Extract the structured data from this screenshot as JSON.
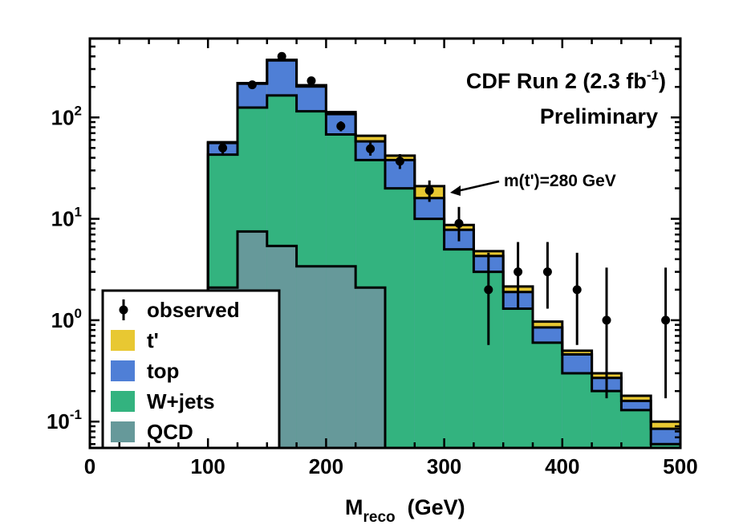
{
  "chart_data": {
    "type": "bar",
    "stacked": true,
    "log_y": true,
    "bin_edges": [
      100,
      125,
      150,
      175,
      200,
      225,
      250,
      275,
      300,
      325,
      350,
      375,
      400,
      425,
      450,
      475,
      500
    ],
    "series": [
      {
        "name": "QCD",
        "color": "#66999a",
        "values": [
          2.1,
          7.5,
          5.4,
          3.4,
          3.4,
          2.1,
          0,
          0,
          0,
          0,
          0,
          0,
          0,
          0,
          0,
          0
        ]
      },
      {
        "name": "W+jets",
        "color": "#33b37f",
        "values": [
          43,
          125,
          165,
          115,
          68,
          38,
          20,
          10,
          5,
          3,
          1.3,
          0.6,
          0.3,
          0.2,
          0.13,
          0.06
        ]
      },
      {
        "name": "top",
        "color": "#4f7fd6",
        "values": [
          56,
          215,
          365,
          202,
          108,
          58,
          38,
          16,
          7.8,
          4.3,
          1.9,
          0.85,
          0.46,
          0.27,
          0.16,
          0.085
        ]
      },
      {
        "name": "t'",
        "color": "#e8c832",
        "values": [
          57,
          218,
          370,
          208,
          113,
          66,
          42,
          21,
          8.7,
          4.8,
          2.15,
          0.97,
          0.5,
          0.3,
          0.18,
          0.1
        ]
      }
    ],
    "observed": {
      "name": "observed",
      "x": [
        112.5,
        137.5,
        162.5,
        187.5,
        212.5,
        237.5,
        262.5,
        287.5,
        312.5,
        337.5,
        362.5,
        387.5,
        412.5,
        437.5,
        487.5
      ],
      "y": [
        50,
        210,
        400,
        230,
        82,
        49,
        37,
        19,
        9,
        2,
        3,
        3,
        2,
        1,
        1
      ],
      "err_lo": [
        7,
        14,
        20,
        15,
        9,
        7,
        6,
        4.3,
        3,
        1.43,
        1.7,
        1.7,
        1.43,
        0.83,
        0.83
      ],
      "err_hi": [
        7.5,
        14.5,
        20.5,
        15.5,
        9.5,
        7.5,
        6.5,
        4.9,
        4.1,
        2.63,
        2.9,
        2.9,
        2.63,
        2.3,
        2.3
      ]
    },
    "xlim": [
      0,
      500
    ],
    "ylim": [
      0.055,
      600
    ],
    "x_ticks": [
      "0",
      "100",
      "200",
      "300",
      "400",
      "500"
    ],
    "x_tick_values": [
      0,
      100,
      200,
      300,
      400,
      500
    ],
    "y_ticks": [
      {
        "value": 0.1,
        "base": "10",
        "exp": "-1"
      },
      {
        "value": 1,
        "base": "10",
        "exp": "0"
      },
      {
        "value": 10,
        "base": "10",
        "exp": "1"
      },
      {
        "value": 100,
        "base": "10",
        "exp": "2"
      }
    ],
    "xlabel": {
      "main": "M",
      "sub": "reco",
      "rest": "  (GeV)"
    },
    "ylabel": "",
    "legend": {
      "position": "bottom-left",
      "items": [
        {
          "label": "observed",
          "kind": "marker"
        },
        {
          "label": "t'",
          "color": "#e8c832"
        },
        {
          "label": "top",
          "color": "#4f7fd6"
        },
        {
          "label": "W+jets",
          "color": "#33b37f"
        },
        {
          "label": "QCD",
          "color": "#66999a"
        }
      ]
    },
    "annotations": {
      "title_line1": "CDF Run 2 (2.3 fb",
      "title_sup": "-1",
      "title_close": ")",
      "title_line2": "Preliminary",
      "arrow_text": "m(t')=280 GeV",
      "arrow_target": {
        "x": 305,
        "y": 18
      }
    }
  }
}
